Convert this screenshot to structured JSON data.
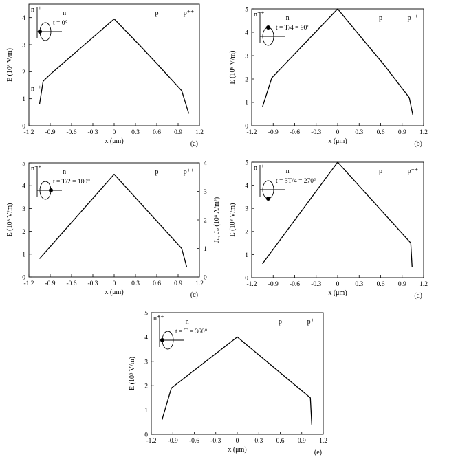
{
  "chart_data": [
    {
      "type": "line",
      "panel": "(a)",
      "annotation": "t = 0°",
      "phase_deg": 0,
      "xlabel": "x (μm)",
      "ylabel": "E (10⁸ V/m)",
      "xlim": [
        -1.2,
        1.2
      ],
      "ylim": [
        0,
        4.5
      ],
      "xticks": [
        "-1.2",
        "-0.9",
        "-0.6",
        "-0.3",
        "0",
        "0.3",
        "0.6",
        "0.9",
        "1.2"
      ],
      "yticks": [
        "0",
        "1",
        "2",
        "3",
        "4"
      ],
      "regions": [
        "n⁺⁺",
        "n",
        "p",
        "p⁺⁺"
      ],
      "extra_labels": [
        "n⁺⁺"
      ],
      "x": [
        -1.05,
        -1.0,
        -0.9,
        0.0,
        0.35,
        0.6,
        0.95,
        1.05
      ],
      "y": [
        0.8,
        1.65,
        1.9,
        3.95,
        3.0,
        2.3,
        1.3,
        0.45
      ]
    },
    {
      "type": "line",
      "panel": "(b)",
      "annotation": "t = T/4 = 90°",
      "phase_deg": 90,
      "xlabel": "x (μm)",
      "ylabel": "E (10⁸ V/m)",
      "xlim": [
        -1.2,
        1.2
      ],
      "ylim": [
        0,
        5
      ],
      "xticks": [
        "-1.2",
        "-0.9",
        "-0.6",
        "-0.3",
        "0",
        "0.3",
        "0.6",
        "0.9",
        "1.2"
      ],
      "yticks": [
        "0",
        "1",
        "2",
        "3",
        "4",
        "5"
      ],
      "regions": [
        "n⁺⁺",
        "n",
        "p",
        "p⁺⁺"
      ],
      "extra_labels": [],
      "x": [
        -1.05,
        -0.92,
        0.0,
        0.35,
        0.65,
        1.0,
        1.05
      ],
      "y": [
        0.8,
        2.05,
        5.0,
        3.7,
        2.6,
        1.2,
        0.45
      ]
    },
    {
      "type": "line",
      "panel": "(c)",
      "annotation": "t = T/2 = 180°",
      "phase_deg": 180,
      "xlabel": "x (μm)",
      "ylabel": "E (10⁸ V/m)",
      "ylabel_right": "Jₙ, Jₚ (10⁸ A/m²)",
      "xlim": [
        -1.2,
        1.2
      ],
      "ylim": [
        0,
        5
      ],
      "ylim_right": [
        0,
        4
      ],
      "xticks": [
        "-1.2",
        "-0.9",
        "-0.6",
        "-0.3",
        "0",
        "0.3",
        "0.6",
        "0.9",
        "1.2"
      ],
      "yticks": [
        "0",
        "1",
        "2",
        "3",
        "4",
        "5"
      ],
      "yticks_right": [
        "0",
        "1",
        "2",
        "3",
        "4"
      ],
      "regions": [
        "n⁺⁺",
        "n",
        "p",
        "p⁺⁺"
      ],
      "extra_labels": [],
      "x": [
        -1.05,
        0.0,
        0.95,
        1.02
      ],
      "y": [
        0.8,
        4.5,
        1.25,
        0.45
      ]
    },
    {
      "type": "line",
      "panel": "(d)",
      "annotation": "t = 3T/4 = 270°",
      "phase_deg": 270,
      "xlabel": "x (μm)",
      "ylabel": "E (10⁸ V/m)",
      "xlim": [
        -1.2,
        1.2
      ],
      "ylim": [
        0,
        5
      ],
      "xticks": [
        "-1.2",
        "-0.9",
        "-0.6",
        "-0.3",
        "0",
        "0.3",
        "0.6",
        "0.9",
        "1.2"
      ],
      "yticks": [
        "0",
        "1",
        "2",
        "3",
        "4",
        "5"
      ],
      "regions": [
        "n⁺⁺",
        "n",
        "p",
        "p⁺⁺"
      ],
      "extra_labels": [],
      "x": [
        -1.05,
        0.0,
        1.02,
        1.04
      ],
      "y": [
        0.6,
        5.0,
        1.5,
        0.45
      ]
    },
    {
      "type": "line",
      "panel": "(e)",
      "annotation": "t = T = 360°",
      "phase_deg": 360,
      "xlabel": "x (μm)",
      "ylabel": "E (10⁸ V/m)",
      "xlim": [
        -1.2,
        1.2
      ],
      "ylim": [
        0,
        5
      ],
      "xticks": [
        "-1.2",
        "-0.9",
        "-0.6",
        "-0.3",
        "0",
        "0.3",
        "0.6",
        "0.9",
        "1.2"
      ],
      "yticks": [
        "0",
        "1",
        "2",
        "3",
        "4",
        "5"
      ],
      "regions": [
        "n⁺⁺",
        "n",
        "p",
        "p⁺⁺"
      ],
      "extra_labels": [],
      "x": [
        -1.05,
        -0.92,
        0.0,
        1.02,
        1.04
      ],
      "y": [
        0.6,
        1.9,
        4.0,
        1.5,
        0.4
      ]
    }
  ]
}
